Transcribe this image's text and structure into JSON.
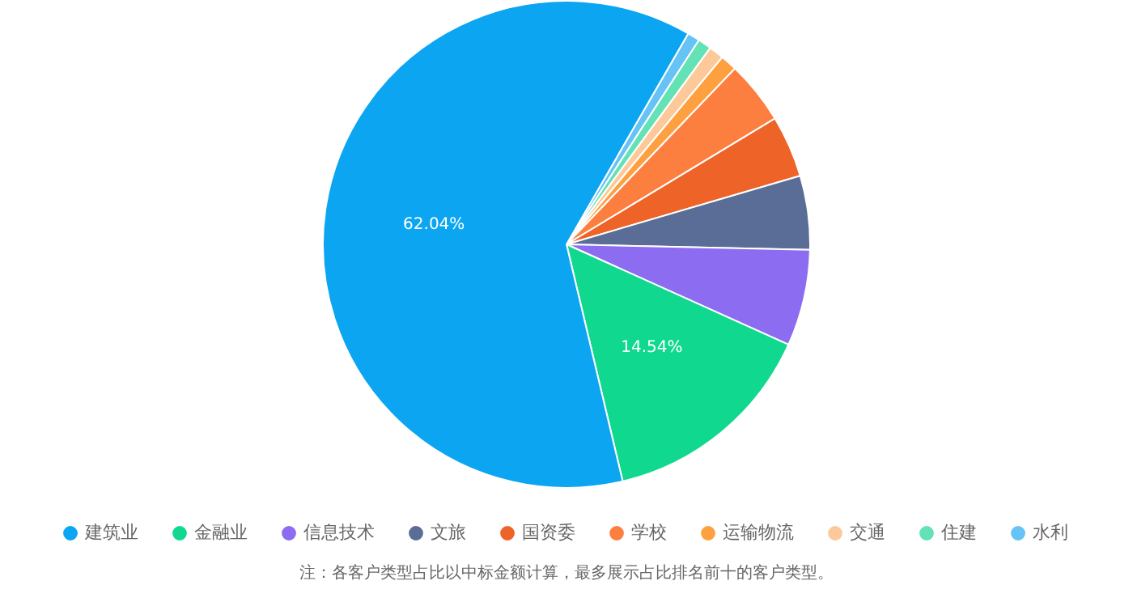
{
  "chart_data": {
    "type": "pie",
    "categories": [
      "建筑业",
      "金融业",
      "信息技术",
      "文旅",
      "国资委",
      "学校",
      "运输物流",
      "交通",
      "住建",
      "水利"
    ],
    "values": [
      62.04,
      14.54,
      6.4,
      4.9,
      4.1,
      4.2,
      1.1,
      1.0,
      0.9,
      0.82
    ],
    "colors": [
      "#0ba5f2",
      "#10d98f",
      "#8c6cf0",
      "#596d96",
      "#ee6327",
      "#fd7f40",
      "#fea040",
      "#fec99a",
      "#63e2b5",
      "#65c3f6"
    ],
    "value_labels": [
      "62.04%",
      "14.54%",
      null,
      null,
      null,
      null,
      null,
      null,
      null,
      null
    ],
    "legend": "bottom",
    "annotations": [
      "注：各客户类型占比以中标金额计算，最多展示占比排名前十的客户类型。"
    ]
  }
}
